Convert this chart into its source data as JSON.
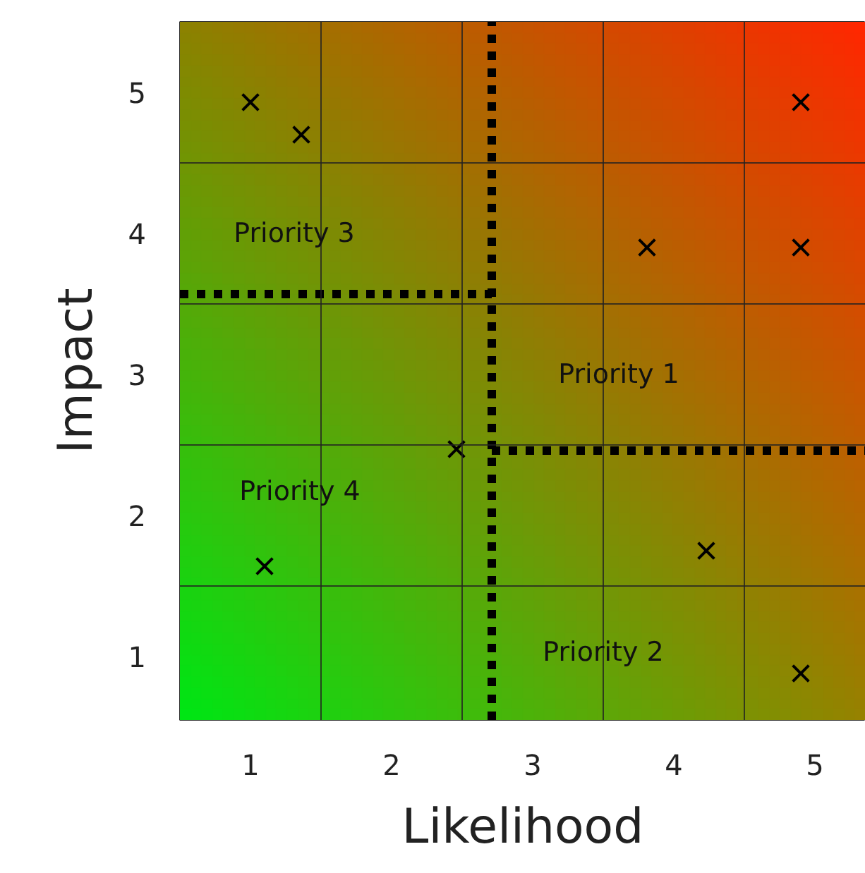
{
  "chart_data": {
    "type": "scatter",
    "xlabel": "Likelihood",
    "ylabel": "Impact",
    "xlim": [
      0.5,
      5.36
    ],
    "ylim": [
      0.55,
      5.5
    ],
    "xticks": [
      1,
      2,
      3,
      4,
      5,
      {
        "value": 1.5,
        "label": null
      },
      {
        "value": 2.5,
        "label": null
      },
      {
        "value": 3.5,
        "label": null
      },
      {
        "value": 4.5,
        "label": null
      }
    ],
    "yticks": [
      1,
      2,
      3,
      4,
      5,
      {
        "value": 1.5,
        "label": null
      },
      {
        "value": 2.5,
        "label": null
      },
      {
        "value": 3.5,
        "label": null
      },
      {
        "value": 4.5,
        "label": null
      }
    ],
    "grid": true,
    "marker": "cross",
    "series": [
      {
        "color": "#000000",
        "x": [
          1.0,
          1.36,
          4.9,
          3.81,
          4.9,
          2.46,
          1.1,
          4.23,
          4.9
        ],
        "values": [
          4.93,
          4.7,
          4.93,
          3.9,
          3.9,
          2.47,
          1.64,
          1.75,
          0.88
        ]
      },
      {
        "type": "line",
        "color": "#000000",
        "line_style": "dotted",
        "marker": "none",
        "x": [
          2.71,
          2.71
        ],
        "values": [
          0.55,
          5.5
        ]
      },
      {
        "type": "line",
        "color": "#000000",
        "line_style": "dotted",
        "marker": "none",
        "x": [
          0.5,
          2.71
        ],
        "values": [
          3.57,
          3.57
        ]
      },
      {
        "type": "line",
        "color": "#000000",
        "line_style": "dotted",
        "marker": "none",
        "x": [
          2.71,
          5.36
        ],
        "values": [
          2.46,
          2.46
        ]
      }
    ],
    "annotations": [
      "Priority 3",
      "Priority 1",
      "Priority 4",
      "Priority 2"
    ]
  }
}
